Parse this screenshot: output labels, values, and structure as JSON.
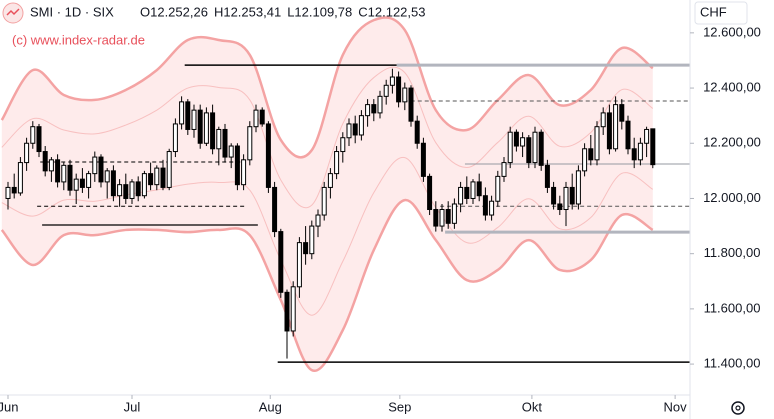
{
  "header": {
    "symbol": "SMI · 1D · SIX",
    "ohlc": [
      "O12.252,26",
      "H12.253,41",
      "L12.109,78",
      "C12.122,53"
    ],
    "watermark": "(c) www.index-radar.de",
    "currency": "CHF"
  },
  "chart_data": {
    "type": "candlestick",
    "up_color": "#ffffff",
    "down_color": "#000000",
    "wick_color": "#000000",
    "band_color": "#f4a3a3",
    "band_fill": "#fde3e3",
    "xlim": [
      -1.29,
      110
    ],
    "xticks": [
      {
        "value": 0,
        "label": "Jun"
      },
      {
        "value": 20,
        "label": "Jul"
      },
      {
        "value": 42.3,
        "label": "Aug"
      },
      {
        "value": 63.2,
        "label": "Sep"
      },
      {
        "value": 84.5,
        "label": "Okt"
      },
      {
        "value": 107.6,
        "label": "Nov"
      }
    ],
    "ylim": [
      11288,
      12719
    ],
    "yticks": [
      {
        "value": 11400,
        "label": "11.400,00"
      },
      {
        "value": 11600,
        "label": "11.600,00"
      },
      {
        "value": 11800,
        "label": "11.800,00"
      },
      {
        "value": 12000,
        "label": "12.000,00"
      },
      {
        "value": 12200,
        "label": "12.200,00"
      },
      {
        "value": 12400,
        "label": "12.400,00"
      },
      {
        "value": 12600,
        "label": "12.600,00"
      }
    ],
    "ohlc": [
      [
        12000,
        12060,
        11960,
        12040
      ],
      [
        12040,
        12090,
        12000,
        12020
      ],
      [
        12020,
        12150,
        12010,
        12130
      ],
      [
        12130,
        12220,
        12100,
        12200
      ],
      [
        12200,
        12280,
        12180,
        12260
      ],
      [
        12260,
        12270,
        12150,
        12170
      ],
      [
        12170,
        12190,
        12080,
        12100
      ],
      [
        12100,
        12150,
        12060,
        12140
      ],
      [
        12140,
        12160,
        12040,
        12060
      ],
      [
        12060,
        12130,
        12030,
        12120
      ],
      [
        12120,
        12140,
        12010,
        12030
      ],
      [
        12030,
        12090,
        11980,
        12070
      ],
      [
        12070,
        12110,
        12020,
        12040
      ],
      [
        12040,
        12100,
        12000,
        12090
      ],
      [
        12090,
        12170,
        12060,
        12150
      ],
      [
        12150,
        12160,
        12040,
        12060
      ],
      [
        12060,
        12110,
        12000,
        12100
      ],
      [
        12100,
        12120,
        11990,
        12010
      ],
      [
        12010,
        12070,
        11970,
        12050
      ],
      [
        12050,
        12090,
        11980,
        12000
      ],
      [
        12000,
        12070,
        11980,
        12060
      ],
      [
        12060,
        12080,
        11990,
        12010
      ],
      [
        12010,
        12100,
        12000,
        12090
      ],
      [
        12090,
        12130,
        12030,
        12050
      ],
      [
        12050,
        12120,
        12030,
        12110
      ],
      [
        12110,
        12140,
        12030,
        12040
      ],
      [
        12040,
        12180,
        12030,
        12170
      ],
      [
        12170,
        12290,
        12150,
        12270
      ],
      [
        12270,
        12370,
        12250,
        12350
      ],
      [
        12350,
        12360,
        12230,
        12250
      ],
      [
        12250,
        12340,
        12220,
        12320
      ],
      [
        12320,
        12340,
        12180,
        12200
      ],
      [
        12200,
        12330,
        12190,
        12310
      ],
      [
        12310,
        12340,
        12160,
        12180
      ],
      [
        12180,
        12260,
        12120,
        12250
      ],
      [
        12250,
        12270,
        12130,
        12150
      ],
      [
        12150,
        12200,
        12110,
        12190
      ],
      [
        12190,
        12200,
        12030,
        12050
      ],
      [
        12050,
        12160,
        12030,
        12140
      ],
      [
        12140,
        12280,
        12120,
        12260
      ],
      [
        12260,
        12340,
        12240,
        12320
      ],
      [
        12320,
        12330,
        12260,
        12270
      ],
      [
        12270,
        12280,
        12020,
        12040
      ],
      [
        12040,
        12060,
        11860,
        11880
      ],
      [
        11880,
        11890,
        11640,
        11660
      ],
      [
        11660,
        11670,
        11420,
        11520
      ],
      [
        11520,
        11700,
        11500,
        11680
      ],
      [
        11680,
        11860,
        11640,
        11840
      ],
      [
        11840,
        11900,
        11760,
        11800
      ],
      [
        11800,
        11920,
        11780,
        11900
      ],
      [
        11900,
        11960,
        11860,
        11940
      ],
      [
        11940,
        12060,
        11920,
        12040
      ],
      [
        12040,
        12110,
        12000,
        12090
      ],
      [
        12090,
        12190,
        12070,
        12170
      ],
      [
        12170,
        12240,
        12130,
        12220
      ],
      [
        12220,
        12290,
        12190,
        12270
      ],
      [
        12270,
        12300,
        12200,
        12230
      ],
      [
        12230,
        12320,
        12210,
        12300
      ],
      [
        12300,
        12360,
        12260,
        12340
      ],
      [
        12340,
        12360,
        12280,
        12310
      ],
      [
        12310,
        12390,
        12290,
        12370
      ],
      [
        12370,
        12430,
        12340,
        12410
      ],
      [
        12410,
        12470,
        12380,
        12440
      ],
      [
        12440,
        12460,
        12330,
        12350
      ],
      [
        12350,
        12420,
        12320,
        12400
      ],
      [
        12400,
        12410,
        12260,
        12280
      ],
      [
        12280,
        12300,
        12180,
        12200
      ],
      [
        12200,
        12220,
        12060,
        12080
      ],
      [
        12080,
        12090,
        11940,
        11960
      ],
      [
        11960,
        11990,
        11880,
        11900
      ],
      [
        11900,
        11980,
        11880,
        11960
      ],
      [
        11960,
        11990,
        11890,
        11910
      ],
      [
        11910,
        12000,
        11890,
        11980
      ],
      [
        11980,
        12060,
        11950,
        12040
      ],
      [
        12040,
        12080,
        11980,
        12000
      ],
      [
        12000,
        12070,
        11980,
        12060
      ],
      [
        12060,
        12090,
        11990,
        12010
      ],
      [
        12010,
        12040,
        11920,
        11940
      ],
      [
        11940,
        12010,
        11920,
        11990
      ],
      [
        11990,
        12100,
        11970,
        12080
      ],
      [
        12080,
        12150,
        12060,
        12130
      ],
      [
        12130,
        12260,
        12110,
        12240
      ],
      [
        12240,
        12250,
        12170,
        12190
      ],
      [
        12190,
        12240,
        12150,
        12220
      ],
      [
        12220,
        12230,
        12110,
        12130
      ],
      [
        12130,
        12260,
        12110,
        12240
      ],
      [
        12240,
        12250,
        12100,
        12120
      ],
      [
        12120,
        12140,
        12020,
        12040
      ],
      [
        12040,
        12060,
        11960,
        11980
      ],
      [
        11980,
        12010,
        11940,
        11960
      ],
      [
        11960,
        12060,
        11900,
        12040
      ],
      [
        12040,
        12090,
        11960,
        11980
      ],
      [
        11980,
        12120,
        11960,
        12100
      ],
      [
        12100,
        12200,
        12080,
        12180
      ],
      [
        12180,
        12230,
        12120,
        12140
      ],
      [
        12140,
        12280,
        12120,
        12260
      ],
      [
        12260,
        12330,
        12230,
        12310
      ],
      [
        12310,
        12340,
        12160,
        12180
      ],
      [
        12180,
        12370,
        12170,
        12340
      ],
      [
        12340,
        12360,
        12250,
        12280
      ],
      [
        12280,
        12300,
        12160,
        12180
      ],
      [
        12180,
        12220,
        12110,
        12140
      ],
      [
        12140,
        12220,
        12120,
        12200
      ],
      [
        12200,
        12260,
        12150,
        12250
      ],
      [
        12252.26,
        12253.41,
        12109.78,
        12122.53
      ]
    ],
    "bands": {
      "x": [
        -1,
        4,
        9,
        14,
        19,
        24,
        29,
        34,
        39,
        44,
        49,
        54,
        59,
        64,
        69,
        74,
        79,
        84,
        89,
        94,
        99,
        104
      ],
      "upper": [
        12284,
        12465,
        12375,
        12357,
        12393,
        12465,
        12574,
        12574,
        12520,
        12212,
        12175,
        12520,
        12646,
        12610,
        12320,
        12248,
        12357,
        12447,
        12338,
        12393,
        12545,
        12472
      ],
      "inner_upper": [
        12185,
        12289,
        12248,
        12234,
        12266,
        12320,
        12400,
        12402,
        12357,
        12067,
        11976,
        12271,
        12438,
        12456,
        12202,
        12112,
        12203,
        12298,
        12189,
        12239,
        12394,
        12326
      ],
      "inner_lower": [
        11985,
        11936,
        11994,
        11990,
        12013,
        12031,
        12052,
        12058,
        12030,
        11777,
        11577,
        11772,
        12021,
        12148,
        11967,
        11840,
        11895,
        11999,
        11890,
        11931,
        12091,
        12033
      ],
      "lower": [
        11886,
        11759,
        11867,
        11867,
        11886,
        11886,
        11878,
        11886,
        11867,
        11632,
        11378,
        11523,
        11813,
        11994,
        11849,
        11704,
        11741,
        11849,
        11741,
        11777,
        11940,
        11886
      ]
    },
    "levels": [
      {
        "value": 12483,
        "from": 28.5,
        "to": 62.7,
        "color": "#000000",
        "width": 1.5,
        "dash": false
      },
      {
        "value": 12483,
        "from": 62.7,
        "to": 110,
        "color": "#b2b5be",
        "width": 3,
        "dash": false
      },
      {
        "value": 12353,
        "from": 62.7,
        "to": 110,
        "color": "#555555",
        "width": 1,
        "dash": true
      },
      {
        "value": 11904,
        "from": 5.5,
        "to": 40.3,
        "color": "#000000",
        "width": 1.2,
        "dash": false
      },
      {
        "value": 12132,
        "from": 5.2,
        "to": 38.2,
        "color": "#000000",
        "width": 1,
        "dash": true
      },
      {
        "value": 11972,
        "from": 4.7,
        "to": 38.2,
        "color": "#000000",
        "width": 1,
        "dash": true
      },
      {
        "value": 12125,
        "from": 73.7,
        "to": 110,
        "color": "#9598a1",
        "width": 1,
        "dash": false
      },
      {
        "value": 11878,
        "from": 70.5,
        "to": 110,
        "color": "#b2b5be",
        "width": 3,
        "dash": false
      },
      {
        "value": 11972,
        "from": 69.7,
        "to": 110,
        "color": "#555555",
        "width": 1,
        "dash": true
      },
      {
        "value": 11407,
        "from": 43.5,
        "to": 110,
        "color": "#000000",
        "width": 1.5,
        "dash": false
      }
    ]
  }
}
